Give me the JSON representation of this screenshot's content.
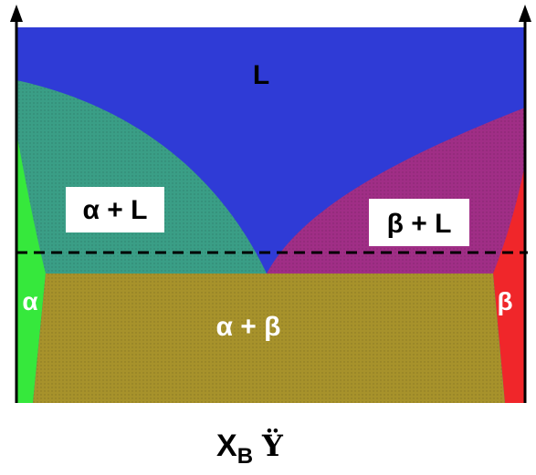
{
  "diagram": {
    "regions": {
      "liquid": "L",
      "alpha_liquid": "α + L",
      "beta_liquid": "β + L",
      "alpha": "α",
      "beta": "β",
      "alpha_beta": "α + β"
    },
    "x_axis": {
      "symbol": "X",
      "subscript": "B",
      "arrow_glyph": "Ÿ"
    },
    "colors": {
      "liquid": "#2f3bd6",
      "alpha_liquid": "#3a9e86",
      "beta_liquid": "#a02e86",
      "alpha": "#36e83c",
      "beta": "#f0262a",
      "alpha_beta": "#a7922b",
      "axis": "#000000"
    },
    "eutectic_line_style": "dashed"
  }
}
